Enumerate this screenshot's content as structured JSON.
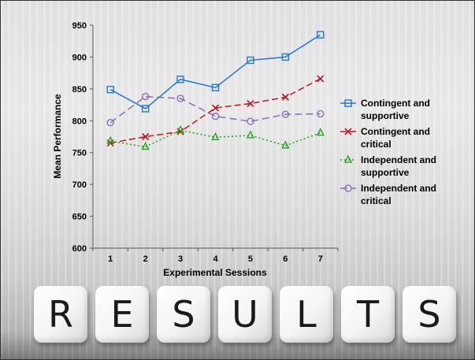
{
  "chart_data": {
    "type": "line",
    "xlabel": "Experimental Sessions",
    "ylabel": "Mean Performance",
    "x": [
      1,
      2,
      3,
      4,
      5,
      6,
      7
    ],
    "ylim": [
      600,
      950
    ],
    "yticks": [
      600,
      650,
      700,
      750,
      800,
      850,
      900,
      950
    ],
    "grid": false,
    "legend_position": "right",
    "series": [
      {
        "name": "Contingent and supportive",
        "legend_lines": [
          "Contingent and",
          "supportive"
        ],
        "values": [
          849,
          819,
          865,
          852,
          895,
          900,
          935
        ],
        "color": "#1f77d0",
        "marker": "square",
        "line_style": "solid"
      },
      {
        "name": "Contingent and critical",
        "legend_lines": [
          "Contingent and",
          "critical"
        ],
        "values": [
          765,
          775,
          783,
          820,
          827,
          837,
          866
        ],
        "color": "#c0141c",
        "marker": "x",
        "line_style": "dash"
      },
      {
        "name": "Independent and supportive",
        "legend_lines": [
          "Independent and",
          "supportive"
        ],
        "values": [
          768,
          759,
          785,
          774,
          777,
          761,
          781
        ],
        "color": "#19a319",
        "marker": "triangle",
        "line_style": "dot"
      },
      {
        "name": "Independent and critical",
        "legend_lines": [
          "Independent and",
          "critical"
        ],
        "values": [
          797,
          838,
          835,
          807,
          799,
          810,
          811
        ],
        "color": "#8a6cb8",
        "marker": "circle",
        "line_style": "longdash"
      }
    ]
  },
  "dice": [
    "R",
    "E",
    "S",
    "U",
    "L",
    "T",
    "S"
  ]
}
